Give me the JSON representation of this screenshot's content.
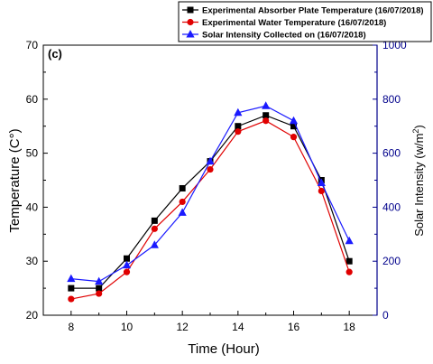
{
  "chart_data": {
    "type": "line",
    "panel_label": "(c)",
    "xlabel": "Time (Hour)",
    "ylabel_left": "Temperature (C°)",
    "ylabel_right": {
      "base": "Solar Intensity (w/m",
      "sup": "2",
      "end": ")"
    },
    "x": [
      8,
      9,
      10,
      11,
      12,
      13,
      14,
      15,
      16,
      17,
      18
    ],
    "xlim": [
      7,
      19
    ],
    "xticks": [
      8,
      10,
      12,
      14,
      16,
      18
    ],
    "ylim_left": [
      20,
      70
    ],
    "yticks_left": [
      20,
      30,
      40,
      50,
      60,
      70
    ],
    "ylim_right": [
      0,
      1000
    ],
    "yticks_right": [
      0,
      200,
      400,
      600,
      800,
      1000
    ],
    "grid": false,
    "legend_position": "top-right",
    "series": [
      {
        "name": "Experimental Absorber Plate Temperature (16/07/2018)",
        "axis": "left",
        "marker": "square",
        "color": "#000000",
        "values": [
          25,
          25,
          30.5,
          37.5,
          43.5,
          48.5,
          55,
          57,
          55,
          45,
          30
        ]
      },
      {
        "name": "Experimental Water Temperature (16/07/2018)",
        "axis": "left",
        "marker": "circle",
        "color": "#e00000",
        "values": [
          23,
          24,
          28,
          36,
          41,
          47,
          54,
          56,
          53,
          43,
          28
        ]
      },
      {
        "name": "Solar Intensity Collected on (16/07/2018)",
        "axis": "right",
        "marker": "triangle",
        "color": "#1a1aff",
        "values": [
          135,
          125,
          185,
          260,
          380,
          570,
          750,
          775,
          720,
          490,
          275
        ]
      }
    ]
  }
}
